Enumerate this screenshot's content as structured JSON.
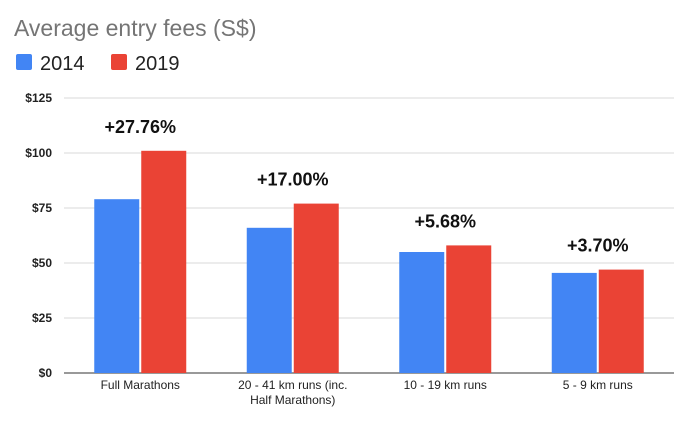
{
  "chart_data": {
    "type": "bar",
    "title": "Average entry fees (S$)",
    "xlabel": "",
    "ylabel": "",
    "categories": [
      [
        "Full Marathons"
      ],
      [
        "20 - 41 km runs (inc.",
        "Half Marathons)"
      ],
      [
        "10 - 19 km runs"
      ],
      [
        "5 - 9 km runs"
      ]
    ],
    "series": [
      {
        "name": "2014",
        "color": "#4285f4",
        "values": [
          79,
          66,
          55,
          45.5
        ]
      },
      {
        "name": "2019",
        "color": "#ea4335",
        "values": [
          101,
          77,
          58,
          47
        ]
      }
    ],
    "annotations": [
      "+27.76%",
      "+17.00%",
      "+5.68%",
      "+3.70%"
    ],
    "ylim": [
      0,
      125
    ],
    "yticks": [
      0,
      25,
      50,
      75,
      100,
      125
    ],
    "ytick_labels": [
      "$0",
      "$25",
      "$50",
      "$75",
      "$100",
      "$125"
    ],
    "grid": true,
    "legend_position": "top-left"
  }
}
